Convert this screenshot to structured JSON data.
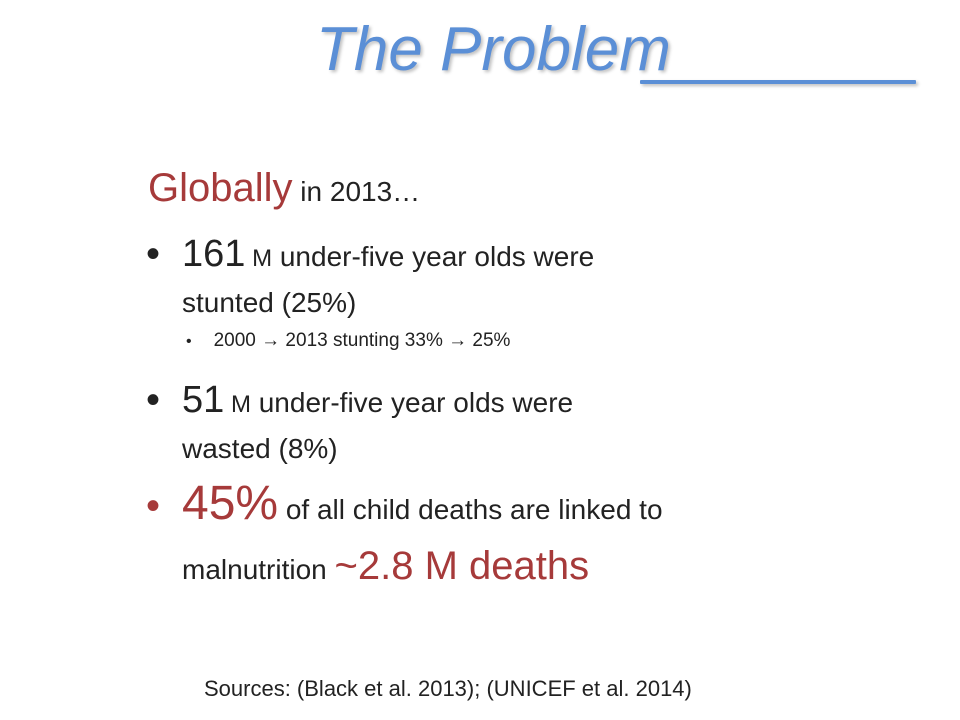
{
  "slide": {
    "title": "The Problem",
    "intro": {
      "big": "Globally",
      "small": " in 2013…"
    },
    "bullets": [
      {
        "number": "161",
        "unit": " M",
        "line1": " under-five year olds were",
        "line2": "stunted (25%)",
        "sub": "2000 → 2013 stunting  33% → 25%"
      },
      {
        "number": "51",
        "unit": " M",
        "line1": " under-five year olds were",
        "line2": "wasted (8%)"
      },
      {
        "number": "45%",
        "line1": " of all child deaths are linked to",
        "line2": "malnutrition ",
        "deaths": "~2.8 M deaths"
      }
    ],
    "sources": "Sources: (Black et al. 2013); (UNICEF et al. 2014)",
    "colors": {
      "title": "#5b8fd6",
      "accent": "#a63a3a",
      "text": "#222222"
    }
  }
}
